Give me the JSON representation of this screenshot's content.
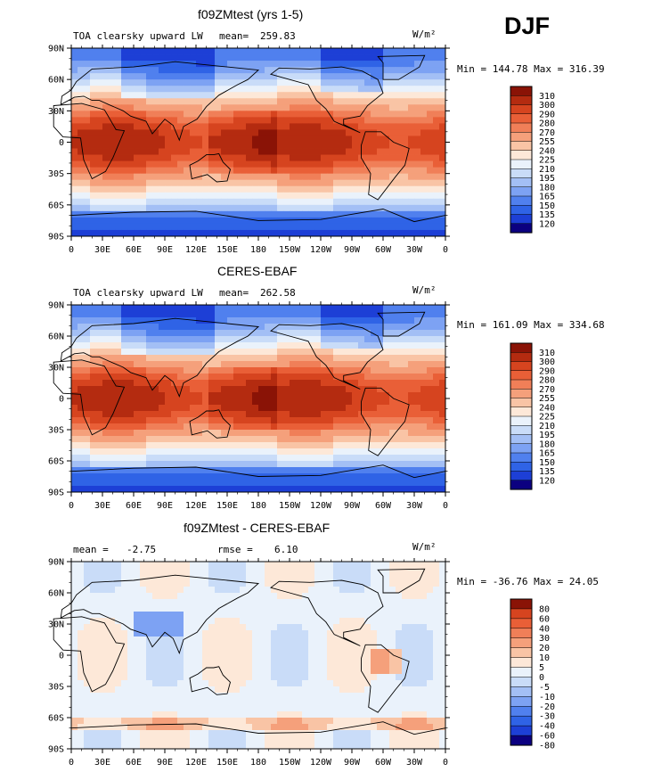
{
  "season": "DJF",
  "colors": {
    "abs_palette": [
      "#0b0080",
      "#1d3fd6",
      "#2f63e6",
      "#5080ee",
      "#7da2f3",
      "#a3bff5",
      "#c9dcf8",
      "#eaf2fb",
      "#fde8d8",
      "#f9c4a5",
      "#f5a07b",
      "#f07f58",
      "#e95f37",
      "#d6441f",
      "#b42b10",
      "#8a1306"
    ],
    "diff_palette": [
      "#0b0080",
      "#1d3fd6",
      "#2f63e6",
      "#5080ee",
      "#7da2f3",
      "#a3bff5",
      "#c9dcf8",
      "#eaf2fb",
      "#fde8d8",
      "#f9c4a5",
      "#f5a07b",
      "#f07f58",
      "#e95f37",
      "#d6441f",
      "#8a1306"
    ],
    "coast": "#000000"
  },
  "chart_data": [
    {
      "type": "heatmap",
      "title": "f09ZMtest (yrs 1-5)",
      "variable": "TOA clearsky upward LW",
      "stat_label": "mean=",
      "stat_value": "259.83",
      "units": "W/m²",
      "min": "144.78",
      "max": "316.39",
      "x_ticks": [
        "0",
        "30E",
        "60E",
        "90E",
        "120E",
        "150E",
        "180",
        "150W",
        "120W",
        "90W",
        "60W",
        "30W",
        "0"
      ],
      "y_ticks": [
        "90N",
        "60N",
        "30N",
        "0",
        "30S",
        "60S",
        "90S"
      ],
      "colorbar_levels": [
        "310",
        "300",
        "290",
        "280",
        "270",
        "255",
        "240",
        "225",
        "210",
        "195",
        "180",
        "165",
        "150",
        "135",
        "120"
      ],
      "kind": "abs"
    },
    {
      "type": "heatmap",
      "title": "CERES-EBAF",
      "variable": "TOA clearsky upward LW",
      "stat_label": "mean=",
      "stat_value": "262.58",
      "units": "W/m²",
      "min": "161.09",
      "max": "334.68",
      "x_ticks": [
        "0",
        "30E",
        "60E",
        "90E",
        "120E",
        "150E",
        "180",
        "150W",
        "120W",
        "90W",
        "60W",
        "30W",
        "0"
      ],
      "y_ticks": [
        "90N",
        "60N",
        "30N",
        "0",
        "30S",
        "60S",
        "90S"
      ],
      "colorbar_levels": [
        "310",
        "300",
        "290",
        "280",
        "270",
        "255",
        "240",
        "225",
        "210",
        "195",
        "180",
        "165",
        "150",
        "135",
        "120"
      ],
      "kind": "abs"
    },
    {
      "type": "heatmap",
      "title": "f09ZMtest - CERES-EBAF",
      "variable": "",
      "stat_label": "mean =",
      "stat_value": "-2.75",
      "rmse_label": "rmse =",
      "rmse_value": "6.10",
      "units": "W/m²",
      "min": "-36.76",
      "max": "24.05",
      "x_ticks": [
        "0",
        "30E",
        "60E",
        "90E",
        "120E",
        "150E",
        "180",
        "150W",
        "120W",
        "90W",
        "60W",
        "30W",
        "0"
      ],
      "y_ticks": [
        "90N",
        "60N",
        "30N",
        "0",
        "30S",
        "60S",
        "90S"
      ],
      "colorbar_levels": [
        "80",
        "60",
        "40",
        "30",
        "20",
        "10",
        "5",
        "0",
        "-5",
        "-10",
        "-20",
        "-30",
        "-40",
        "-60",
        "-80"
      ],
      "kind": "diff"
    }
  ]
}
